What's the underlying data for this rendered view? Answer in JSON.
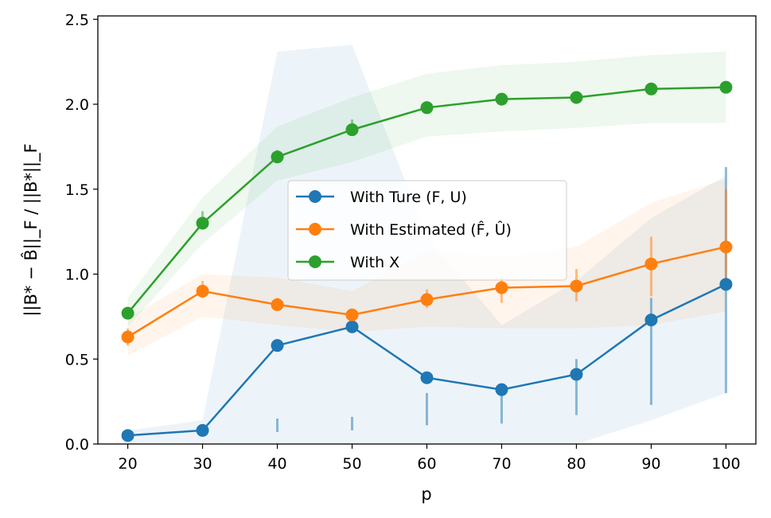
{
  "chart_data": {
    "type": "line",
    "xlabel": "p",
    "ylabel": "||B* − B̂||_F / ||B*||_F",
    "x": [
      20,
      30,
      40,
      50,
      60,
      70,
      80,
      90,
      100
    ],
    "xlim": [
      16,
      104
    ],
    "ylim": [
      0,
      2.52
    ],
    "xticks": [
      "20",
      "30",
      "40",
      "50",
      "60",
      "70",
      "80",
      "90",
      "100"
    ],
    "yticks": [
      "0.0",
      "0.5",
      "1.0",
      "1.5",
      "2.0",
      "2.5"
    ],
    "grid": false,
    "legend_position": "center",
    "series": [
      {
        "name": "With Ture (F, U)",
        "color": "#1f77b4",
        "values": [
          0.05,
          0.08,
          0.58,
          0.69,
          0.39,
          0.32,
          0.41,
          0.73,
          0.94
        ],
        "band_lower": [
          0.0,
          0.0,
          0.0,
          0.0,
          0.0,
          0.0,
          0.0,
          0.14,
          0.3
        ],
        "band_upper": [
          0.08,
          0.14,
          2.31,
          2.35,
          1.22,
          0.7,
          0.96,
          1.33,
          1.58
        ],
        "err_lower": [
          0.04,
          0.07,
          0.07,
          0.08,
          0.11,
          0.12,
          0.17,
          0.23,
          0.3
        ],
        "err_upper": [
          0.06,
          0.09,
          0.15,
          0.16,
          0.3,
          0.32,
          0.5,
          0.86,
          1.63
        ]
      },
      {
        "name": "With Estimated (F̂, Û)",
        "color": "#ff7f0e",
        "values": [
          0.63,
          0.9,
          0.82,
          0.76,
          0.85,
          0.92,
          0.93,
          1.06,
          1.16
        ],
        "band_lower": [
          0.52,
          0.75,
          0.7,
          0.66,
          0.69,
          0.68,
          0.68,
          0.7,
          0.78
        ],
        "band_upper": [
          0.74,
          1.0,
          0.98,
          0.9,
          1.14,
          1.1,
          1.16,
          1.42,
          1.56
        ],
        "err_lower": [
          0.58,
          0.86,
          0.79,
          0.73,
          0.8,
          0.83,
          0.84,
          0.87,
          0.93
        ],
        "err_upper": [
          0.68,
          0.96,
          0.86,
          0.79,
          0.91,
          0.98,
          1.03,
          1.22,
          1.5
        ]
      },
      {
        "name": "With X",
        "color": "#2ca02c",
        "values": [
          0.77,
          1.3,
          1.69,
          1.85,
          1.98,
          2.03,
          2.04,
          2.09,
          2.1
        ],
        "band_lower": [
          0.69,
          1.18,
          1.55,
          1.66,
          1.81,
          1.84,
          1.86,
          1.89,
          1.89
        ],
        "band_upper": [
          0.86,
          1.45,
          1.87,
          2.04,
          2.18,
          2.23,
          2.25,
          2.29,
          2.31
        ],
        "err_lower": [
          0.75,
          1.27,
          1.66,
          1.83,
          1.96,
          2.01,
          2.02,
          2.07,
          2.08
        ],
        "err_upper": [
          0.79,
          1.37,
          1.73,
          1.91,
          2.0,
          2.05,
          2.06,
          2.11,
          2.12
        ]
      }
    ]
  }
}
